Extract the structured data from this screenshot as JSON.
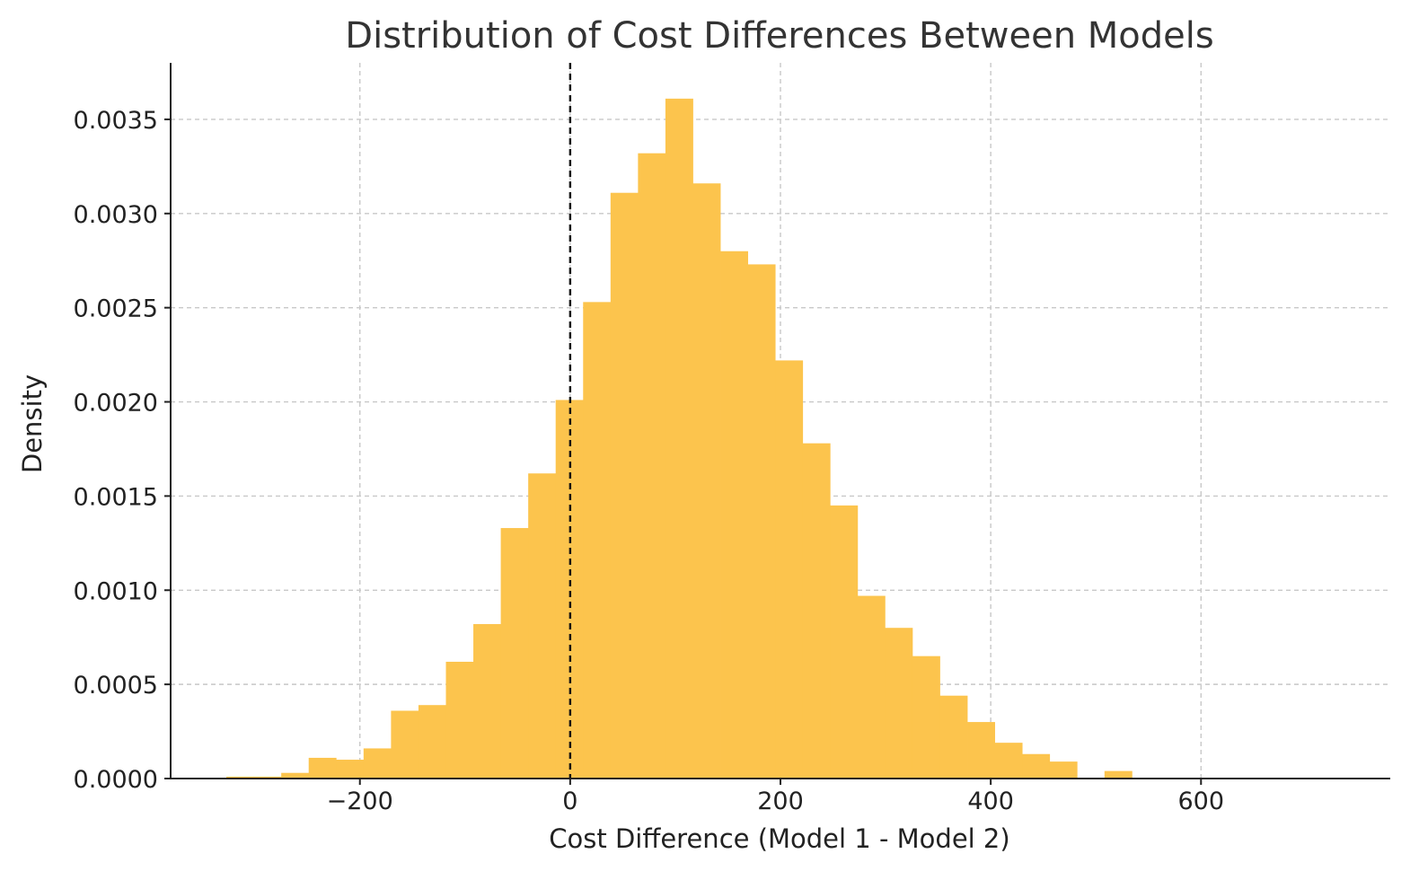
{
  "chart_data": {
    "type": "bar",
    "subtype": "histogram",
    "title": "Distribution of Cost Differences Between Models",
    "xlabel": "Cost Difference (Model 1 - Model 2)",
    "ylabel": "Density",
    "xlim": [
      -380,
      780
    ],
    "ylim": [
      0,
      0.0038
    ],
    "xticks": [
      -200,
      0,
      200,
      400,
      600
    ],
    "xtick_labels": [
      "−200",
      "0",
      "200",
      "400",
      "600"
    ],
    "yticks": [
      0,
      0.0005,
      0.001,
      0.0015,
      0.002,
      0.0025,
      0.003,
      0.0035
    ],
    "ytick_labels": [
      "0.0000",
      "0.0005",
      "0.0010",
      "0.0015",
      "0.0020",
      "0.0025",
      "0.0030",
      "0.0035"
    ],
    "grid": true,
    "bar_color": "#fcc44d",
    "reference_line": {
      "x": 0,
      "style": "dashed",
      "color": "#111111"
    },
    "bin_start": -327,
    "bin_width": 26.1,
    "values": [
      1e-05,
      1e-05,
      3e-05,
      0.00011,
      0.0001,
      0.00016,
      0.00036,
      0.00039,
      0.00062,
      0.00082,
      0.00133,
      0.00162,
      0.00201,
      0.00253,
      0.00311,
      0.00332,
      0.00361,
      0.00316,
      0.0028,
      0.00273,
      0.00222,
      0.00178,
      0.00145,
      0.00097,
      0.0008,
      0.00065,
      0.00044,
      0.0003,
      0.00019,
      0.00013,
      9e-05,
      0,
      4e-05
    ]
  }
}
